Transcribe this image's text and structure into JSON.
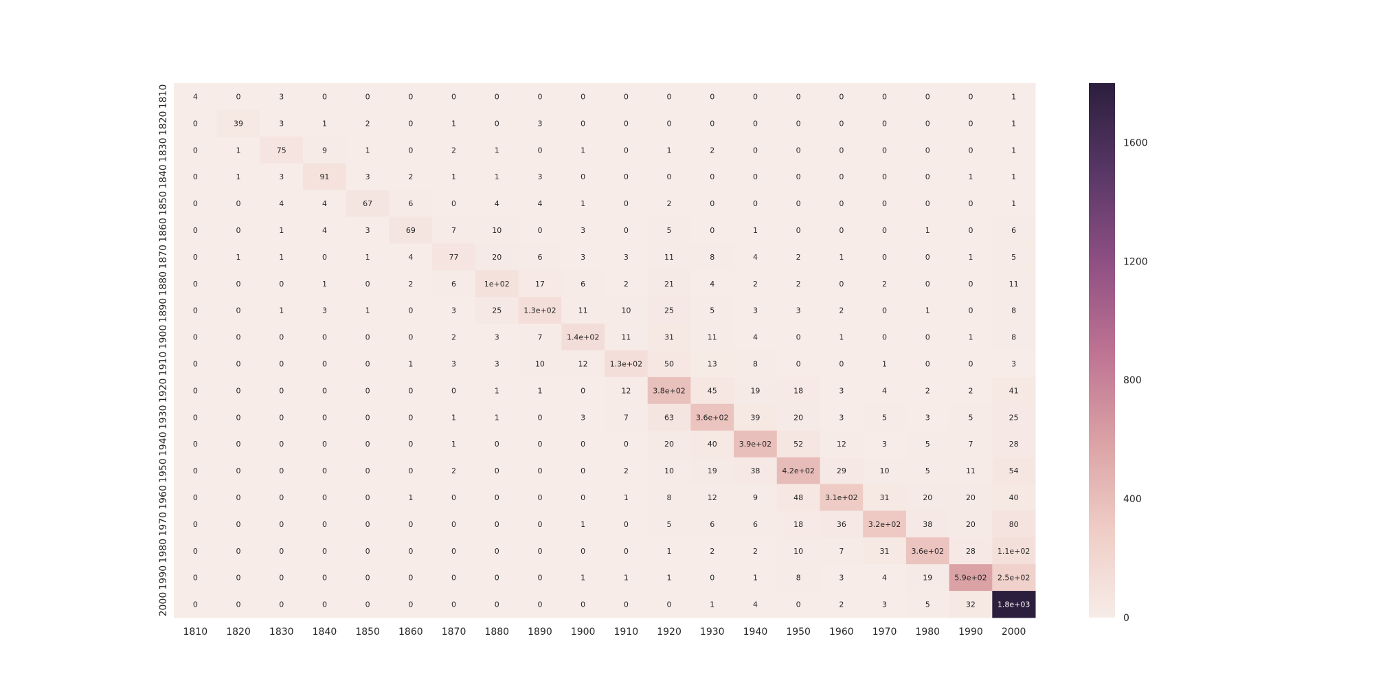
{
  "chart_data": {
    "type": "heatmap",
    "title": "",
    "xlabel": "",
    "ylabel": "",
    "x_categories": [
      "1810",
      "1820",
      "1830",
      "1840",
      "1850",
      "1860",
      "1870",
      "1880",
      "1890",
      "1900",
      "1910",
      "1920",
      "1930",
      "1940",
      "1950",
      "1960",
      "1970",
      "1980",
      "1990",
      "2000"
    ],
    "y_categories": [
      "1810",
      "1820",
      "1830",
      "1840",
      "1850",
      "1860",
      "1870",
      "1880",
      "1890",
      "1900",
      "1910",
      "1920",
      "1930",
      "1940",
      "1950",
      "1960",
      "1970",
      "1980",
      "1990",
      "2000"
    ],
    "values": [
      [
        4,
        0,
        3,
        0,
        0,
        0,
        0,
        0,
        0,
        0,
        0,
        0,
        0,
        0,
        0,
        0,
        0,
        0,
        0,
        1
      ],
      [
        0,
        39,
        3,
        1,
        2,
        0,
        1,
        0,
        3,
        0,
        0,
        0,
        0,
        0,
        0,
        0,
        0,
        0,
        0,
        1
      ],
      [
        0,
        1,
        75,
        9,
        1,
        0,
        2,
        1,
        0,
        1,
        0,
        1,
        2,
        0,
        0,
        0,
        0,
        0,
        0,
        1
      ],
      [
        0,
        1,
        3,
        91,
        3,
        2,
        1,
        1,
        3,
        0,
        0,
        0,
        0,
        0,
        0,
        0,
        0,
        0,
        1,
        1
      ],
      [
        0,
        0,
        4,
        4,
        67,
        6,
        0,
        4,
        4,
        1,
        0,
        2,
        0,
        0,
        0,
        0,
        0,
        0,
        0,
        1
      ],
      [
        0,
        0,
        1,
        4,
        3,
        69,
        7,
        10,
        0,
        3,
        0,
        5,
        0,
        1,
        0,
        0,
        0,
        1,
        0,
        6
      ],
      [
        0,
        1,
        1,
        0,
        1,
        4,
        77,
        20,
        6,
        3,
        3,
        11,
        8,
        4,
        2,
        1,
        0,
        0,
        1,
        5
      ],
      [
        0,
        0,
        0,
        1,
        0,
        2,
        6,
        100,
        17,
        6,
        2,
        21,
        4,
        2,
        2,
        0,
        2,
        0,
        0,
        11
      ],
      [
        0,
        0,
        1,
        3,
        1,
        0,
        3,
        25,
        130,
        11,
        10,
        25,
        5,
        3,
        3,
        2,
        0,
        1,
        0,
        8
      ],
      [
        0,
        0,
        0,
        0,
        0,
        0,
        2,
        3,
        7,
        140,
        11,
        31,
        11,
        4,
        0,
        1,
        0,
        0,
        1,
        8
      ],
      [
        0,
        0,
        0,
        0,
        0,
        1,
        3,
        3,
        10,
        12,
        130,
        50,
        13,
        8,
        0,
        0,
        1,
        0,
        0,
        3
      ],
      [
        0,
        0,
        0,
        0,
        0,
        0,
        0,
        1,
        1,
        0,
        12,
        380,
        45,
        19,
        18,
        3,
        4,
        2,
        2,
        41
      ],
      [
        0,
        0,
        0,
        0,
        0,
        0,
        1,
        1,
        0,
        3,
        7,
        63,
        360,
        39,
        20,
        3,
        5,
        3,
        5,
        25
      ],
      [
        0,
        0,
        0,
        0,
        0,
        0,
        1,
        0,
        0,
        0,
        0,
        20,
        40,
        390,
        52,
        12,
        3,
        5,
        7,
        28
      ],
      [
        0,
        0,
        0,
        0,
        0,
        0,
        2,
        0,
        0,
        0,
        2,
        10,
        19,
        38,
        420,
        29,
        10,
        5,
        11,
        54
      ],
      [
        0,
        0,
        0,
        0,
        0,
        1,
        0,
        0,
        0,
        0,
        1,
        8,
        12,
        9,
        48,
        310,
        31,
        20,
        20,
        40
      ],
      [
        0,
        0,
        0,
        0,
        0,
        0,
        0,
        0,
        0,
        1,
        0,
        5,
        6,
        6,
        18,
        36,
        320,
        38,
        20,
        80
      ],
      [
        0,
        0,
        0,
        0,
        0,
        0,
        0,
        0,
        0,
        0,
        0,
        1,
        2,
        2,
        10,
        7,
        31,
        360,
        28,
        110
      ],
      [
        0,
        0,
        0,
        0,
        0,
        0,
        0,
        0,
        0,
        1,
        1,
        1,
        0,
        1,
        8,
        3,
        4,
        19,
        590,
        250
      ],
      [
        0,
        0,
        0,
        0,
        0,
        0,
        0,
        0,
        0,
        0,
        0,
        0,
        1,
        4,
        0,
        2,
        3,
        5,
        32,
        1800
      ]
    ],
    "labels": [
      [
        "4",
        "0",
        "3",
        "0",
        "0",
        "0",
        "0",
        "0",
        "0",
        "0",
        "0",
        "0",
        "0",
        "0",
        "0",
        "0",
        "0",
        "0",
        "0",
        "1"
      ],
      [
        "0",
        "39",
        "3",
        "1",
        "2",
        "0",
        "1",
        "0",
        "3",
        "0",
        "0",
        "0",
        "0",
        "0",
        "0",
        "0",
        "0",
        "0",
        "0",
        "1"
      ],
      [
        "0",
        "1",
        "75",
        "9",
        "1",
        "0",
        "2",
        "1",
        "0",
        "1",
        "0",
        "1",
        "2",
        "0",
        "0",
        "0",
        "0",
        "0",
        "0",
        "1"
      ],
      [
        "0",
        "1",
        "3",
        "91",
        "3",
        "2",
        "1",
        "1",
        "3",
        "0",
        "0",
        "0",
        "0",
        "0",
        "0",
        "0",
        "0",
        "0",
        "1",
        "1"
      ],
      [
        "0",
        "0",
        "4",
        "4",
        "67",
        "6",
        "0",
        "4",
        "4",
        "1",
        "0",
        "2",
        "0",
        "0",
        "0",
        "0",
        "0",
        "0",
        "0",
        "1"
      ],
      [
        "0",
        "0",
        "1",
        "4",
        "3",
        "69",
        "7",
        "10",
        "0",
        "3",
        "0",
        "5",
        "0",
        "1",
        "0",
        "0",
        "0",
        "1",
        "0",
        "6"
      ],
      [
        "0",
        "1",
        "1",
        "0",
        "1",
        "4",
        "77",
        "20",
        "6",
        "3",
        "3",
        "11",
        "8",
        "4",
        "2",
        "1",
        "0",
        "0",
        "1",
        "5"
      ],
      [
        "0",
        "0",
        "0",
        "1",
        "0",
        "2",
        "6",
        "1e+02",
        "17",
        "6",
        "2",
        "21",
        "4",
        "2",
        "2",
        "0",
        "2",
        "0",
        "0",
        "11"
      ],
      [
        "0",
        "0",
        "1",
        "3",
        "1",
        "0",
        "3",
        "25",
        "1.3e+02",
        "11",
        "10",
        "25",
        "5",
        "3",
        "3",
        "2",
        "0",
        "1",
        "0",
        "8"
      ],
      [
        "0",
        "0",
        "0",
        "0",
        "0",
        "0",
        "2",
        "3",
        "7",
        "1.4e+02",
        "11",
        "31",
        "11",
        "4",
        "0",
        "1",
        "0",
        "0",
        "1",
        "8"
      ],
      [
        "0",
        "0",
        "0",
        "0",
        "0",
        "1",
        "3",
        "3",
        "10",
        "12",
        "1.3e+02",
        "50",
        "13",
        "8",
        "0",
        "0",
        "1",
        "0",
        "0",
        "3"
      ],
      [
        "0",
        "0",
        "0",
        "0",
        "0",
        "0",
        "0",
        "1",
        "1",
        "0",
        "12",
        "3.8e+02",
        "45",
        "19",
        "18",
        "3",
        "4",
        "2",
        "2",
        "41"
      ],
      [
        "0",
        "0",
        "0",
        "0",
        "0",
        "0",
        "1",
        "1",
        "0",
        "3",
        "7",
        "63",
        "3.6e+02",
        "39",
        "20",
        "3",
        "5",
        "3",
        "5",
        "25"
      ],
      [
        "0",
        "0",
        "0",
        "0",
        "0",
        "0",
        "1",
        "0",
        "0",
        "0",
        "0",
        "20",
        "40",
        "3.9e+02",
        "52",
        "12",
        "3",
        "5",
        "7",
        "28"
      ],
      [
        "0",
        "0",
        "0",
        "0",
        "0",
        "0",
        "2",
        "0",
        "0",
        "0",
        "2",
        "10",
        "19",
        "38",
        "4.2e+02",
        "29",
        "10",
        "5",
        "11",
        "54"
      ],
      [
        "0",
        "0",
        "0",
        "0",
        "0",
        "1",
        "0",
        "0",
        "0",
        "0",
        "1",
        "8",
        "12",
        "9",
        "48",
        "3.1e+02",
        "31",
        "20",
        "20",
        "40"
      ],
      [
        "0",
        "0",
        "0",
        "0",
        "0",
        "0",
        "0",
        "0",
        "0",
        "1",
        "0",
        "5",
        "6",
        "6",
        "18",
        "36",
        "3.2e+02",
        "38",
        "20",
        "80"
      ],
      [
        "0",
        "0",
        "0",
        "0",
        "0",
        "0",
        "0",
        "0",
        "0",
        "0",
        "0",
        "1",
        "2",
        "2",
        "10",
        "7",
        "31",
        "3.6e+02",
        "28",
        "1.1e+02"
      ],
      [
        "0",
        "0",
        "0",
        "0",
        "0",
        "0",
        "0",
        "0",
        "0",
        "1",
        "1",
        "1",
        "0",
        "1",
        "8",
        "3",
        "4",
        "19",
        "5.9e+02",
        "2.5e+02"
      ],
      [
        "0",
        "0",
        "0",
        "0",
        "0",
        "0",
        "0",
        "0",
        "0",
        "0",
        "0",
        "0",
        "1",
        "4",
        "0",
        "2",
        "3",
        "5",
        "32",
        "1.8e+03"
      ]
    ],
    "colorbar": {
      "range": [
        0,
        1800
      ],
      "ticks": [
        "0",
        "400",
        "800",
        "1200",
        "1600"
      ],
      "tick_values": [
        0,
        400,
        800,
        1200,
        1600
      ],
      "colors": [
        "#f7ece8",
        "#efccc5",
        "#daa1a5",
        "#bd7292",
        "#8e4f83",
        "#583766",
        "#2c1e3d"
      ]
    },
    "grid": false,
    "legend": "colorbar-right"
  }
}
